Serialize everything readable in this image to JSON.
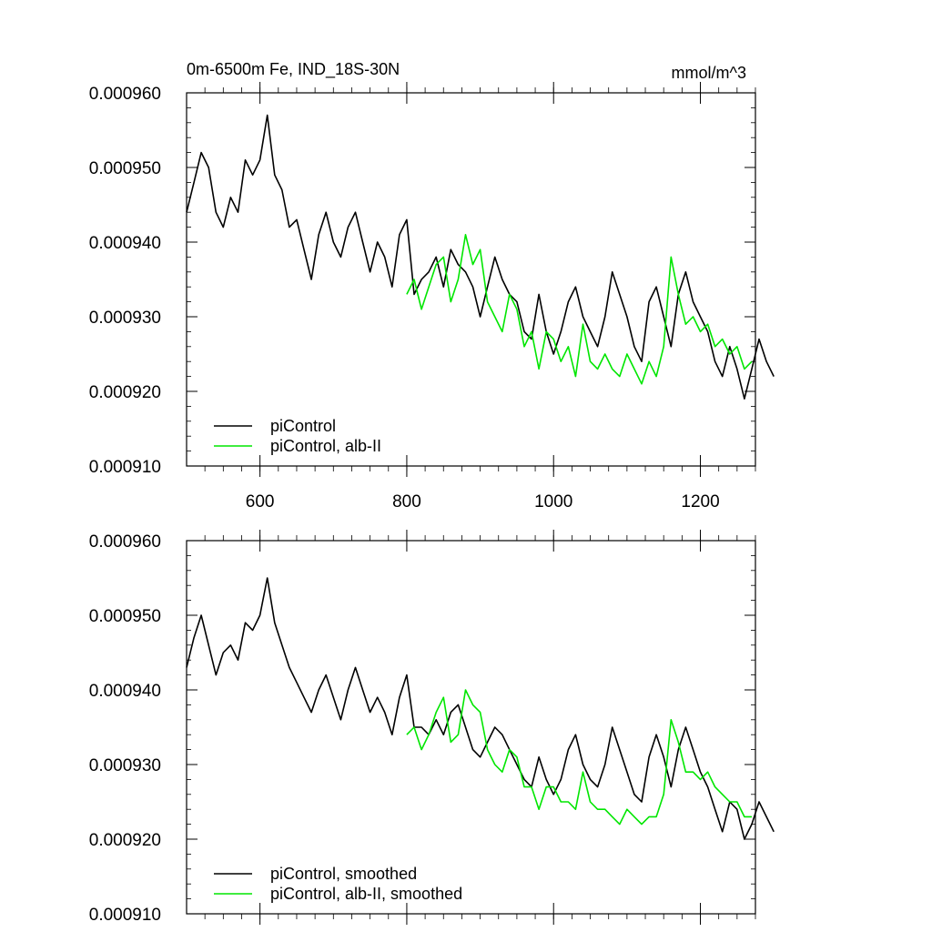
{
  "figure": {
    "title_left": "0m-6500m Fe, IND_18S-30N",
    "title_right": "mmol/m^3"
  },
  "colors": {
    "black_series": "#000000",
    "green_series": "#00e600",
    "axis": "#000000",
    "background": "#ffffff"
  },
  "chart_data": [
    {
      "type": "line",
      "panel": "top",
      "xlim": [
        500,
        1275
      ],
      "ylim": [
        0.00091,
        0.00096
      ],
      "yticks": [
        "0.000910",
        "0.000920",
        "0.000930",
        "0.000940",
        "0.000950",
        "0.000960"
      ],
      "xticks": [
        "600",
        "800",
        "1000",
        "1200"
      ],
      "legend_position": "bottom-left",
      "series": [
        {
          "name": "piControl",
          "color": "#000000",
          "x_start": 500,
          "x_step": 10,
          "values": [
            0.000944,
            0.000948,
            0.000952,
            0.00095,
            0.000944,
            0.000942,
            0.000946,
            0.000944,
            0.000951,
            0.000949,
            0.000951,
            0.000957,
            0.000949,
            0.000947,
            0.000942,
            0.000943,
            0.000939,
            0.000935,
            0.000941,
            0.000944,
            0.00094,
            0.000938,
            0.000942,
            0.000944,
            0.00094,
            0.000936,
            0.00094,
            0.000938,
            0.000934,
            0.000941,
            0.000943,
            0.000933,
            0.000935,
            0.000936,
            0.000938,
            0.000934,
            0.000939,
            0.000937,
            0.000936,
            0.000934,
            0.00093,
            0.000934,
            0.000938,
            0.000935,
            0.000933,
            0.000932,
            0.000928,
            0.000927,
            0.000933,
            0.000928,
            0.000925,
            0.000928,
            0.000932,
            0.000934,
            0.00093,
            0.000928,
            0.000926,
            0.00093,
            0.000936,
            0.000933,
            0.00093,
            0.000926,
            0.000924,
            0.000932,
            0.000934,
            0.00093,
            0.000926,
            0.000933,
            0.000936,
            0.000932,
            0.00093,
            0.000928,
            0.000924,
            0.000922,
            0.000926,
            0.000923,
            0.000919,
            0.000923,
            0.000927,
            0.000924,
            0.000922
          ]
        },
        {
          "name": "piControl, alb-II",
          "color": "#00e600",
          "x_start": 800,
          "x_step": 10,
          "values": [
            0.000933,
            0.000935,
            0.000931,
            0.000934,
            0.000937,
            0.000938,
            0.000932,
            0.000935,
            0.000941,
            0.000937,
            0.000939,
            0.000932,
            0.00093,
            0.000928,
            0.000933,
            0.000931,
            0.000926,
            0.000928,
            0.000923,
            0.000928,
            0.000927,
            0.000924,
            0.000926,
            0.000922,
            0.000929,
            0.000924,
            0.000923,
            0.000925,
            0.000923,
            0.000922,
            0.000925,
            0.000923,
            0.000921,
            0.000924,
            0.000922,
            0.000926,
            0.000938,
            0.000933,
            0.000929,
            0.00093,
            0.000928,
            0.000929,
            0.000926,
            0.000927,
            0.000925,
            0.000926,
            0.000923,
            0.000924
          ]
        }
      ]
    },
    {
      "type": "line",
      "panel": "bottom",
      "xlim": [
        500,
        1275
      ],
      "ylim": [
        0.00091,
        0.00096
      ],
      "yticks": [
        "0.000910",
        "0.000920",
        "0.000930",
        "0.000940",
        "0.000950",
        "0.000960"
      ],
      "xticks": [],
      "legend_position": "bottom-left",
      "series": [
        {
          "name": "piControl, smoothed",
          "color": "#000000",
          "x_start": 500,
          "x_step": 10,
          "values": [
            0.000943,
            0.000947,
            0.00095,
            0.000946,
            0.000942,
            0.000945,
            0.000946,
            0.000944,
            0.000949,
            0.000948,
            0.00095,
            0.000955,
            0.000949,
            0.000946,
            0.000943,
            0.000941,
            0.000939,
            0.000937,
            0.00094,
            0.000942,
            0.000939,
            0.000936,
            0.00094,
            0.000943,
            0.00094,
            0.000937,
            0.000939,
            0.000937,
            0.000934,
            0.000939,
            0.000942,
            0.000935,
            0.000935,
            0.000934,
            0.000936,
            0.000934,
            0.000937,
            0.000938,
            0.000935,
            0.000932,
            0.000931,
            0.000933,
            0.000935,
            0.000934,
            0.000932,
            0.00093,
            0.000928,
            0.000927,
            0.000931,
            0.000928,
            0.000926,
            0.000928,
            0.000932,
            0.000934,
            0.00093,
            0.000928,
            0.000927,
            0.00093,
            0.000935,
            0.000932,
            0.000929,
            0.000926,
            0.000925,
            0.000931,
            0.000934,
            0.000931,
            0.000927,
            0.000932,
            0.000935,
            0.000932,
            0.000929,
            0.000927,
            0.000924,
            0.000921,
            0.000925,
            0.000924,
            0.00092,
            0.000922,
            0.000925,
            0.000923,
            0.000921
          ]
        },
        {
          "name": "piControl, alb-II, smoothed",
          "color": "#00e600",
          "x_start": 800,
          "x_step": 10,
          "values": [
            0.000934,
            0.000935,
            0.000932,
            0.000934,
            0.000937,
            0.000939,
            0.000933,
            0.000934,
            0.00094,
            0.000938,
            0.000937,
            0.000932,
            0.00093,
            0.000929,
            0.000932,
            0.000931,
            0.000927,
            0.000927,
            0.000924,
            0.000927,
            0.000927,
            0.000925,
            0.000925,
            0.000924,
            0.000929,
            0.000925,
            0.000924,
            0.000924,
            0.000923,
            0.000922,
            0.000924,
            0.000923,
            0.000922,
            0.000923,
            0.000923,
            0.000926,
            0.000936,
            0.000933,
            0.000929,
            0.000929,
            0.000928,
            0.000929,
            0.000927,
            0.000926,
            0.000925,
            0.000925,
            0.000923,
            0.000923
          ]
        }
      ]
    }
  ]
}
